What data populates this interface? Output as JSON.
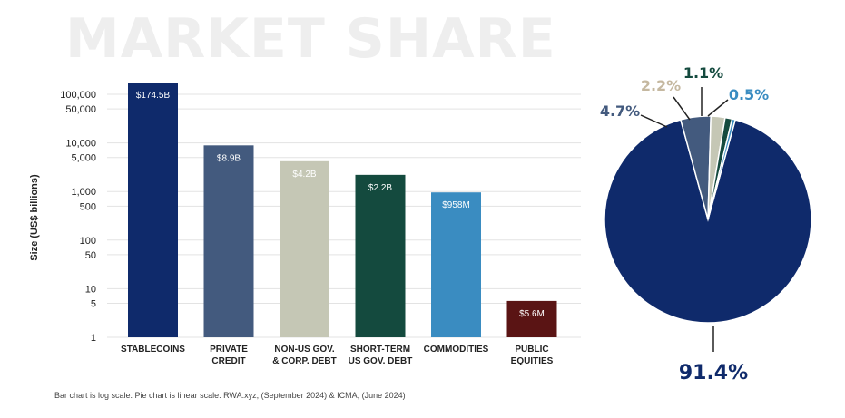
{
  "title": "MARKET SHARE",
  "footnote": "Bar chart is log scale. Pie chart is linear scale. RWA.xyz, (September 2024) & ICMA, (June 2024)",
  "chart_data": [
    {
      "type": "bar",
      "ylabel": "Size (US$ billions)",
      "yscale": "log",
      "ylim": [
        1,
        100000
      ],
      "yticks": [
        "1",
        "5",
        "10",
        "50",
        "100",
        "500",
        "1,000",
        "5,000",
        "10,000",
        "50,000",
        "100,000"
      ],
      "ytick_values": [
        1,
        5,
        10,
        50,
        100,
        500,
        1000,
        5000,
        10000,
        50000,
        100000
      ],
      "grid": true,
      "categories": [
        [
          "STABLECOINS"
        ],
        [
          "PRIVATE",
          "CREDIT"
        ],
        [
          "NON-US GOV.",
          "& CORP. DEBT"
        ],
        [
          "SHORT-TERM",
          "US GOV. DEBT"
        ],
        [
          "COMMODITIES"
        ],
        [
          "PUBLIC",
          "EQUITIES"
        ]
      ],
      "values": [
        174500,
        8900,
        4200,
        2200,
        958,
        5.6
      ],
      "data_labels": [
        "$174.5B",
        "$8.9B",
        "$4.2B",
        "$2.2B",
        "$958M",
        "$5.6M"
      ],
      "colors": [
        "#0f2a6b",
        "#435a7e",
        "#c5c7b5",
        "#144a3e",
        "#3a8cc1",
        "#5a1414"
      ],
      "label_colors": [
        "#ffffff",
        "#ffffff",
        "#f4f4ee",
        "#ffffff",
        "#ffffff",
        "#ffffff"
      ]
    },
    {
      "type": "pie",
      "values": [
        91.4,
        4.7,
        2.2,
        1.1,
        0.5
      ],
      "labels": [
        "91.4%",
        "4.7%",
        "2.2%",
        "1.1%",
        "0.5%"
      ],
      "colors": [
        "#0f2a6b",
        "#435a7e",
        "#c5c7b5",
        "#144a3e",
        "#3a8cc1"
      ],
      "label_colors": [
        "#0f2a6b",
        "#435a7e",
        "#c5b8a0",
        "#144a3e",
        "#3a8cc1"
      ]
    }
  ]
}
